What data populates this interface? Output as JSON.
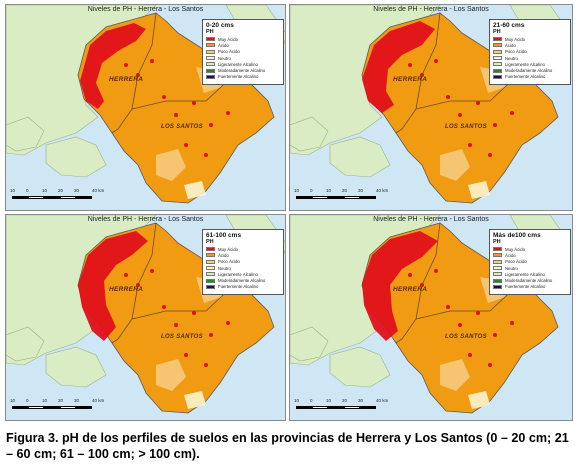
{
  "map_title": "Niveles de PH - Herrera - Los Santos",
  "legend_title": "PH",
  "legend_items": [
    {
      "label": "Muy Ácido",
      "color": "#e0101a"
    },
    {
      "label": "Ácido",
      "color": "#f19b12"
    },
    {
      "label": "Poco Ácido",
      "color": "#f7cc82"
    },
    {
      "label": "Neutro",
      "color": "#fbf3cf"
    },
    {
      "label": "Ligeramente Alcalino",
      "color": "#d8edb4"
    },
    {
      "label": "Moderadamente Alcalino",
      "color": "#1f8a2c"
    },
    {
      "label": "Fuertemente Alcalino",
      "color": "#1a1060"
    }
  ],
  "panels": [
    {
      "depth": "0-20 cms"
    },
    {
      "depth": "21-60 cms"
    },
    {
      "depth": "61-100 cms"
    },
    {
      "depth": "Más de100 cms"
    }
  ],
  "province_labels": {
    "herrera": "HERRERA",
    "los_santos": "LOS SANTOS"
  },
  "scale_ticks": [
    "10",
    "0",
    "10",
    "20",
    "30",
    "40 km"
  ],
  "caption": "Figura 3. pH de los perfiles de suelos en las provincias de Herrera y Los Santos (0 – 20 cm; 21 – 60 cm; 61 – 100 cm; > 100 cm)."
}
